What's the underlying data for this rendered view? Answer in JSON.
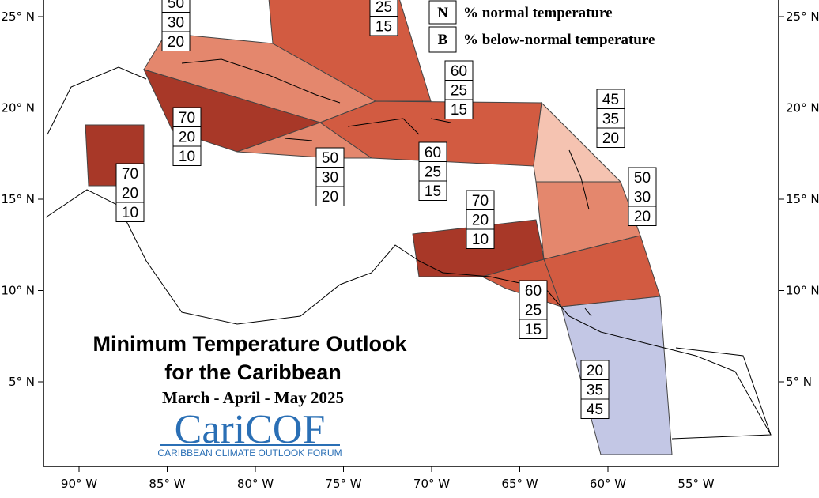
{
  "title": "Minimum Temperature Outlook",
  "title_line2": "for the Caribbean",
  "subtitle": "March - April - May 2025",
  "logo": {
    "name": "CariCOF",
    "tagline": "CARIBBEAN CLIMATE OUTLOOK FORUM"
  },
  "legend": [
    {
      "key": "N",
      "label": "% normal temperature"
    },
    {
      "key": "B",
      "label": "% below-normal temperature"
    }
  ],
  "lon_ticks": [
    {
      "value": -90,
      "label": "90° W"
    },
    {
      "value": -85,
      "label": "85° W"
    },
    {
      "value": -80,
      "label": "80° W"
    },
    {
      "value": -75,
      "label": "75° W"
    },
    {
      "value": -70,
      "label": "70° W"
    },
    {
      "value": -65,
      "label": "65° W"
    },
    {
      "value": -60,
      "label": "60° W"
    },
    {
      "value": -55,
      "label": "55° W"
    }
  ],
  "lat_ticks": [
    {
      "value": 25,
      "label": "25° N"
    },
    {
      "value": 20,
      "label": "20° N"
    },
    {
      "value": 15,
      "label": "15° N"
    },
    {
      "value": 10,
      "label": "10° N"
    },
    {
      "value": 5,
      "label": "5° N"
    }
  ],
  "regions": [
    {
      "values": [
        50,
        30,
        20
      ],
      "color": "#e4876d"
    },
    {
      "values": [
        25,
        15
      ],
      "color": "#d25b41"
    },
    {
      "values": [
        70,
        20,
        10
      ],
      "color": "#a83828"
    },
    {
      "values": [
        50,
        30,
        20
      ],
      "color": "#e4876d"
    },
    {
      "values": [
        60,
        25,
        15
      ],
      "color": "#d25b41"
    },
    {
      "values": [
        70,
        20,
        10
      ],
      "color": "#a83828"
    },
    {
      "values": [
        45,
        35,
        20
      ],
      "color": "#f5c3b1"
    },
    {
      "values": [
        50,
        30,
        20
      ],
      "color": "#e4876d"
    },
    {
      "values": [
        60,
        25,
        15
      ],
      "color": "#d25b41"
    },
    {
      "values": [
        70,
        20,
        10
      ],
      "color": "#a83828"
    },
    {
      "values": [
        60,
        25,
        15
      ],
      "color": "#d25b41"
    },
    {
      "values": [
        20,
        35,
        45
      ],
      "color": "#c3c7e5"
    }
  ]
}
